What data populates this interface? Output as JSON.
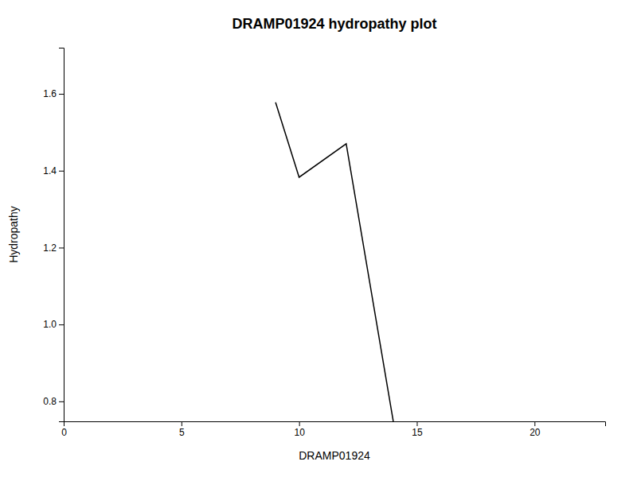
{
  "chart_data": {
    "type": "line",
    "title": "DRAMP01924 hydropathy plot",
    "xlabel": "DRAMP01924",
    "ylabel": "Hydropathy",
    "x": [
      9,
      10,
      12,
      14
    ],
    "values": [
      1.578,
      1.383,
      1.47,
      0.748
    ],
    "color": "#000000",
    "xlim": [
      0,
      23
    ],
    "ylim": [
      0.748,
      1.72
    ],
    "xticks": [
      0,
      5,
      10,
      15,
      20
    ],
    "yticks": [
      0.8,
      {
        "value": 1.0,
        "label": "1.0"
      },
      1.2,
      1.4,
      1.6
    ],
    "grid": false
  }
}
